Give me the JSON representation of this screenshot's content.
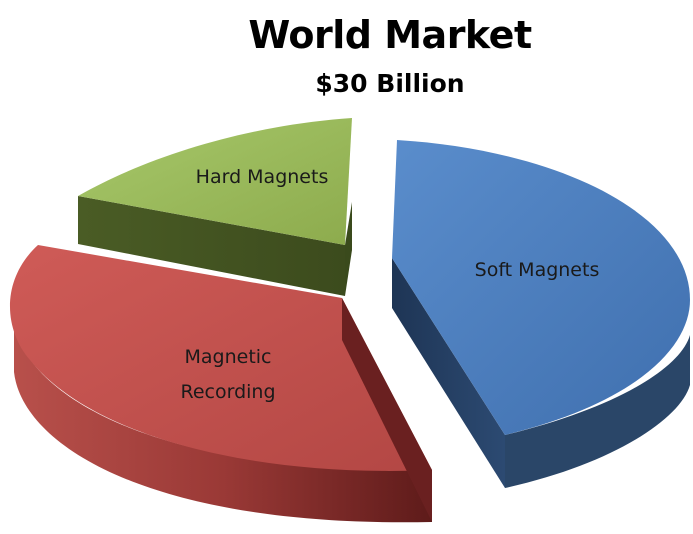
{
  "chart_data": {
    "type": "pie",
    "title": "World Market",
    "subtitle": "$30 Billion",
    "categories": [
      "Soft Magnets",
      "Magnetic Recording",
      "Hard Magnets"
    ],
    "values": [
      40,
      33,
      27
    ],
    "labels": [
      [
        "Soft Magnets"
      ],
      [
        "Magnetic",
        "Recording"
      ],
      [
        "Hard Magnets"
      ]
    ],
    "colors": {
      "Soft Magnets": {
        "top": "#4f81bd",
        "side": "#223d5e"
      },
      "Magnetic Recording": {
        "top": "#c0504d",
        "side": "#7a2424"
      },
      "Hard Magnets": {
        "top": "#9bbb59",
        "side": "#4f6128"
      }
    },
    "style": "3d-exploded"
  }
}
